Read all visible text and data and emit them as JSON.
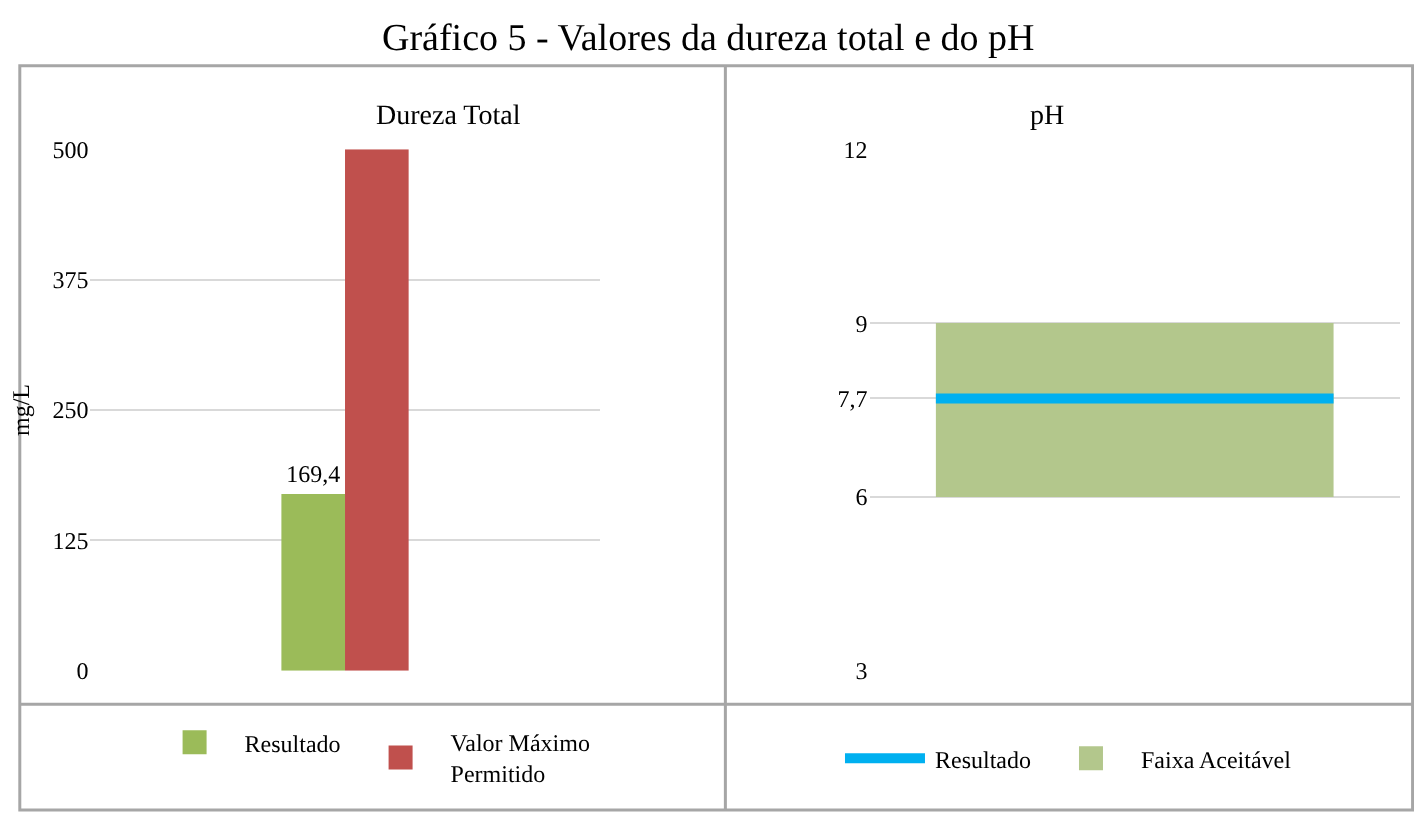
{
  "chart_data": [
    {
      "type": "bar",
      "title": "Dureza Total",
      "annotations": [
        "Gráfico 5 - Valores da dureza total e do pH"
      ],
      "ylabel": "mg/L",
      "categories": [
        null
      ],
      "series": [
        {
          "name": "Resultado",
          "color": "#9bbb59",
          "values": [
            169.4
          ],
          "value_labels": [
            "169,4"
          ]
        },
        {
          "name": "Valor Máximo Permitido",
          "color": "#c0504d",
          "values": [
            500
          ]
        }
      ],
      "ylim": [
        0,
        500
      ],
      "yticks": [
        0,
        125,
        250,
        375,
        500
      ],
      "grid": "y",
      "legend": "bottom"
    },
    {
      "type": "bar",
      "title": "pH",
      "categories": [
        null
      ],
      "series": [
        {
          "name": "Faixa Aceitável",
          "color": "#b3c78c",
          "values": [
            3
          ],
          "base": [
            6
          ]
        }
      ],
      "ref_lines": [
        {
          "axis": "y",
          "value": 7.7,
          "label": "Resultado",
          "color": "#00b0f0"
        }
      ],
      "ylim": [
        3,
        12
      ],
      "yticks": [
        3,
        6,
        {
          "value": 7.7,
          "label": "7,7"
        },
        9,
        12
      ],
      "grid": "y",
      "legend": "bottom"
    }
  ]
}
